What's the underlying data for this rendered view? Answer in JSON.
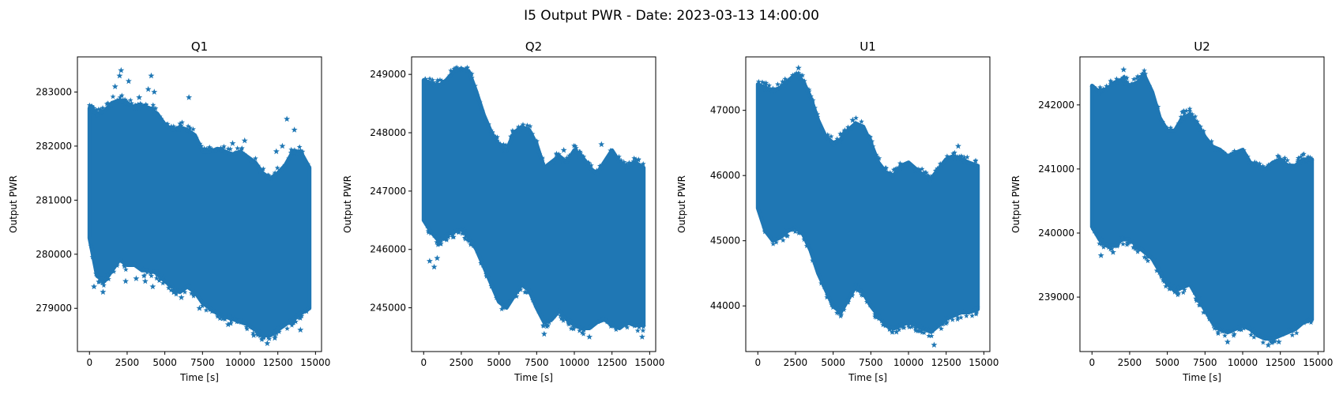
{
  "figure": {
    "suptitle": "I5 Output PWR - Date: 2023-03-13 14:00:00"
  },
  "chart_data": [
    {
      "type": "scatter",
      "title": "Q1",
      "xlabel": "Time [s]",
      "ylabel": "Output PWR",
      "marker": "star",
      "color": "#1f77b4",
      "xlim": [
        -800,
        15400
      ],
      "ylim": [
        278200,
        283650
      ],
      "xticks": [
        0,
        2500,
        5000,
        7500,
        10000,
        12500,
        15000
      ],
      "xtick_labels": [
        "0",
        "2500",
        "5000",
        "7500",
        "10000",
        "12500",
        "15000"
      ],
      "yticks": [
        279000,
        280000,
        281000,
        282000,
        283000
      ],
      "ytick_labels": [
        "279000",
        "280000",
        "281000",
        "282000",
        "283000"
      ],
      "x_range": [
        0,
        14600
      ],
      "band": {
        "x": [
          0,
          500,
          1000,
          1500,
          2000,
          2500,
          3000,
          3500,
          4000,
          4500,
          5000,
          5500,
          6000,
          6500,
          7000,
          7500,
          8000,
          8500,
          9000,
          9500,
          10000,
          10500,
          11000,
          11500,
          12000,
          12500,
          13000,
          13500,
          14000,
          14600
        ],
        "upper": [
          282700,
          282600,
          282650,
          282800,
          282850,
          282800,
          282700,
          282750,
          282700,
          282600,
          282400,
          282300,
          282350,
          282300,
          282200,
          281900,
          281900,
          281950,
          281900,
          281850,
          281900,
          281800,
          281700,
          281500,
          281400,
          281500,
          281650,
          281900,
          281900,
          281600
        ],
        "lower": [
          280300,
          279600,
          279500,
          279700,
          279900,
          279800,
          279800,
          279700,
          279700,
          279650,
          279500,
          279400,
          279300,
          279400,
          279300,
          279100,
          279000,
          278900,
          278850,
          278800,
          278750,
          278700,
          278600,
          278500,
          278500,
          278600,
          278700,
          278800,
          278900,
          279000
        ]
      },
      "outliers": [
        [
          2100,
          283400
        ],
        [
          2000,
          283300
        ],
        [
          4100,
          283300
        ],
        [
          1700,
          283100
        ],
        [
          2600,
          283200
        ],
        [
          3900,
          283050
        ],
        [
          4300,
          283000
        ],
        [
          3300,
          282900
        ],
        [
          6600,
          282900
        ],
        [
          9500,
          282050
        ],
        [
          10300,
          282100
        ],
        [
          12400,
          281900
        ],
        [
          12800,
          282000
        ],
        [
          13100,
          282500
        ],
        [
          13600,
          282300
        ],
        [
          300,
          279400
        ],
        [
          900,
          279300
        ],
        [
          2400,
          279500
        ],
        [
          3100,
          279550
        ],
        [
          3700,
          279500
        ],
        [
          4200,
          279400
        ],
        [
          5600,
          279300
        ],
        [
          6100,
          279200
        ],
        [
          7300,
          279000
        ],
        [
          9200,
          278700
        ],
        [
          10900,
          278500
        ],
        [
          11800,
          278350
        ],
        [
          12300,
          278450
        ],
        [
          14000,
          278600
        ]
      ]
    },
    {
      "type": "scatter",
      "title": "Q2",
      "xlabel": "Time [s]",
      "ylabel": "Output PWR",
      "marker": "star",
      "color": "#1f77b4",
      "xlim": [
        -800,
        15400
      ],
      "ylim": [
        244250,
        249300
      ],
      "xticks": [
        0,
        2500,
        5000,
        7500,
        10000,
        12500,
        15000
      ],
      "xtick_labels": [
        "0",
        "2500",
        "5000",
        "7500",
        "10000",
        "12500",
        "15000"
      ],
      "yticks": [
        245000,
        246000,
        247000,
        248000,
        249000
      ],
      "ytick_labels": [
        "245000",
        "246000",
        "247000",
        "248000",
        "249000"
      ],
      "x_range": [
        0,
        14600
      ],
      "band": {
        "x": [
          0,
          500,
          1000,
          1500,
          2000,
          2500,
          3000,
          3500,
          4000,
          4500,
          5000,
          5500,
          6000,
          6500,
          7000,
          7500,
          8000,
          8500,
          9000,
          9500,
          10000,
          10500,
          11000,
          11500,
          12000,
          12500,
          13000,
          13500,
          14000,
          14600
        ],
        "upper": [
          248900,
          248850,
          248800,
          248900,
          249050,
          249100,
          249050,
          248700,
          248300,
          248000,
          247800,
          247700,
          248000,
          248100,
          248050,
          247800,
          247400,
          247500,
          247600,
          247500,
          247700,
          247600,
          247400,
          247300,
          247500,
          247700,
          247500,
          247400,
          247500,
          247400
        ],
        "lower": [
          246500,
          246300,
          246150,
          246250,
          246300,
          246350,
          246200,
          246000,
          245700,
          245400,
          245100,
          245000,
          245200,
          245400,
          245300,
          245000,
          244750,
          244800,
          244950,
          244800,
          244700,
          244650,
          244650,
          244750,
          244800,
          244700,
          244650,
          244750,
          244700,
          244700
        ]
      },
      "outliers": [
        [
          400,
          245800
        ],
        [
          700,
          245700
        ],
        [
          900,
          245850
        ],
        [
          11800,
          247800
        ],
        [
          9300,
          247700
        ],
        [
          2500,
          249100
        ],
        [
          8000,
          244550
        ],
        [
          11000,
          244500
        ],
        [
          14500,
          244500
        ]
      ]
    },
    {
      "type": "scatter",
      "title": "U1",
      "xlabel": "Time [s]",
      "ylabel": "Output PWR",
      "marker": "star",
      "color": "#1f77b4",
      "xlim": [
        -800,
        15400
      ],
      "ylim": [
        43300,
        47820
      ],
      "xticks": [
        0,
        2500,
        5000,
        7500,
        10000,
        12500,
        15000
      ],
      "xtick_labels": [
        "0",
        "2500",
        "5000",
        "7500",
        "10000",
        "12500",
        "15000"
      ],
      "yticks": [
        44000,
        45000,
        46000,
        47000
      ],
      "ytick_labels": [
        "44000",
        "45000",
        "46000",
        "47000"
      ],
      "x_range": [
        0,
        14600
      ],
      "band": {
        "x": [
          0,
          500,
          1000,
          1500,
          2000,
          2500,
          3000,
          3500,
          4000,
          4500,
          5000,
          5500,
          6000,
          6500,
          7000,
          7500,
          8000,
          8500,
          9000,
          9500,
          10000,
          10500,
          11000,
          11500,
          12000,
          12500,
          13000,
          13500,
          14000,
          14600
        ],
        "upper": [
          47400,
          47350,
          47300,
          47350,
          47450,
          47550,
          47450,
          47200,
          46850,
          46600,
          46500,
          46550,
          46700,
          46800,
          46750,
          46500,
          46200,
          46050,
          46000,
          46150,
          46200,
          46100,
          46000,
          45950,
          46100,
          46250,
          46300,
          46250,
          46200,
          46150
        ],
        "lower": [
          45500,
          45150,
          45000,
          45050,
          45150,
          45200,
          45100,
          44850,
          44500,
          44250,
          44000,
          43900,
          44100,
          44300,
          44200,
          44000,
          43850,
          43700,
          43650,
          43700,
          43750,
          43700,
          43650,
          43600,
          43700,
          43800,
          43850,
          43900,
          43900,
          43950
        ]
      },
      "outliers": [
        [
          2700,
          47650
        ],
        [
          13300,
          46450
        ],
        [
          6300,
          46850
        ],
        [
          11700,
          43400
        ],
        [
          9200,
          43600
        ]
      ]
    },
    {
      "type": "scatter",
      "title": "U2",
      "xlabel": "Time [s]",
      "ylabel": "Output PWR",
      "marker": "star",
      "color": "#1f77b4",
      "xlim": [
        -800,
        15400
      ],
      "ylim": [
        238150,
        242750
      ],
      "xticks": [
        0,
        2500,
        5000,
        7500,
        10000,
        12500,
        15000
      ],
      "xtick_labels": [
        "0",
        "2500",
        "5000",
        "7500",
        "10000",
        "12500",
        "15000"
      ],
      "yticks": [
        239000,
        240000,
        241000,
        242000
      ],
      "ytick_labels": [
        "239000",
        "240000",
        "241000",
        "242000"
      ],
      "x_range": [
        0,
        14600
      ],
      "band": {
        "x": [
          0,
          500,
          1000,
          1500,
          2000,
          2500,
          3000,
          3500,
          4000,
          4500,
          5000,
          5500,
          6000,
          6500,
          7000,
          7500,
          8000,
          8500,
          9000,
          9500,
          10000,
          10500,
          11000,
          11500,
          12000,
          12500,
          13000,
          13500,
          14000,
          14600
        ],
        "upper": [
          242300,
          242200,
          242250,
          242350,
          242400,
          242300,
          242350,
          242450,
          242200,
          241800,
          241600,
          241600,
          241800,
          241850,
          241700,
          241500,
          241350,
          241300,
          241200,
          241250,
          241300,
          241100,
          241050,
          241000,
          241100,
          241150,
          241050,
          241050,
          241150,
          241150
        ],
        "lower": [
          240100,
          239900,
          239800,
          239800,
          239900,
          239900,
          239800,
          239700,
          239600,
          239400,
          239200,
          239100,
          239150,
          239200,
          239000,
          238800,
          238600,
          238500,
          238450,
          238500,
          238550,
          238500,
          238400,
          238350,
          238350,
          238400,
          238450,
          238500,
          238600,
          238650
        ]
      },
      "outliers": [
        [
          2100,
          242550
        ],
        [
          3300,
          242450
        ],
        [
          6100,
          241900
        ],
        [
          10800,
          241100
        ],
        [
          9000,
          238300
        ],
        [
          11700,
          238250
        ],
        [
          12400,
          238300
        ],
        [
          600,
          239650
        ],
        [
          1400,
          239700
        ]
      ]
    }
  ]
}
